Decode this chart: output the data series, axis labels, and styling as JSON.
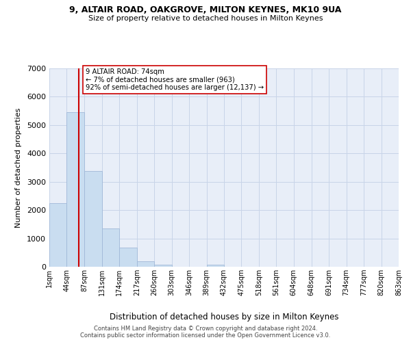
{
  "title1": "9, ALTAIR ROAD, OAKGROVE, MILTON KEYNES, MK10 9UA",
  "title2": "Size of property relative to detached houses in Milton Keynes",
  "xlabel": "Distribution of detached houses by size in Milton Keynes",
  "ylabel": "Number of detached properties",
  "footer1": "Contains HM Land Registry data © Crown copyright and database right 2024.",
  "footer2": "Contains public sector information licensed under the Open Government Licence v3.0.",
  "annotation_line1": "9 ALTAIR ROAD: 74sqm",
  "annotation_line2": "← 7% of detached houses are smaller (963)",
  "annotation_line3": "92% of semi-detached houses are larger (12,137) →",
  "bar_color": "#c9ddf0",
  "bar_edge_color": "#a0b8d8",
  "grid_color": "#c8d4e8",
  "background_color": "#e8eef8",
  "vline_color": "#cc0000",
  "vline_x": 74,
  "bin_edges": [
    1,
    44,
    87,
    131,
    174,
    217,
    260,
    303,
    346,
    389,
    432,
    475,
    518,
    561,
    604,
    648,
    691,
    734,
    777,
    820,
    863
  ],
  "bar_heights": [
    2250,
    5450,
    3380,
    1350,
    680,
    200,
    80,
    0,
    0,
    75,
    0,
    0,
    0,
    0,
    0,
    0,
    0,
    0,
    0,
    0
  ],
  "ylim": [
    0,
    7000
  ],
  "yticks": [
    0,
    1000,
    2000,
    3000,
    4000,
    5000,
    6000,
    7000
  ],
  "figsize": [
    6.0,
    5.0
  ],
  "dpi": 100
}
